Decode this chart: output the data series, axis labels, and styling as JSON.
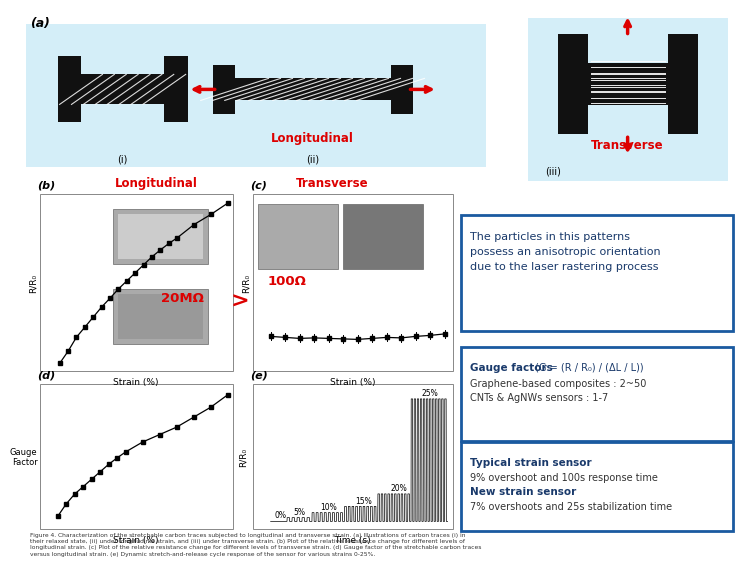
{
  "bg_color": "#ffffff",
  "light_blue_bg": "#d4eef8",
  "red_color": "#dd0000",
  "blue_border_color": "#1a5aa0",
  "dark_blue_text": "#1a3a6b",
  "box1_text_line1": "The particles in this patterns",
  "box1_text_line2": "possess an anisotropic orientation",
  "box1_text_line3": "due to the laser rastering process",
  "box2_title": "Gauge factors",
  "box2_formula": " (G = (R / R₀) / (ΔL / L))",
  "box2_line2": "Graphene-based composites : 2~50",
  "box2_line3": "CNTs & AgNWs sensors : 1-7",
  "box3_line1": "Typical strain sensor",
  "box3_line2": "9% overshoot and 100s response time",
  "box3_line3": "New strain sensor",
  "box3_line4": "7% overshoots and 25s stabilization time",
  "longitudinal_label": "Longitudinal",
  "transverse_label": "Transverse",
  "panel_a_label": "(a)",
  "panel_b_label": "(b)",
  "panel_c_label": "(c)",
  "panel_d_label": "(d)",
  "panel_e_label": "(e)",
  "b_title": "Longitudinal",
  "c_title": "Transverse",
  "b_resistance": "20MΩ",
  "c_resistance": "100Ω",
  "gt_symbol": ">",
  "fig_caption": "Figure 4. Characterization of the stretchable carbon traces subjected to longitudinal and transverse strain. (a) Illustrations of carbon traces (i) in\ntheir relaxed state, (ii) under longitudinal strain, and (iii) under transverse strain. (b) Plot of the relative resistance change for different levels of\nlongitudinal strain. (c) Plot of the relative resistance change for different levels of transverse strain. (d) Gauge factor of the stretchable carbon traces\nversus longitudinal strain. (e) Dynamic stretch-and-release cycle response of the sensor for various strains 0-25%."
}
